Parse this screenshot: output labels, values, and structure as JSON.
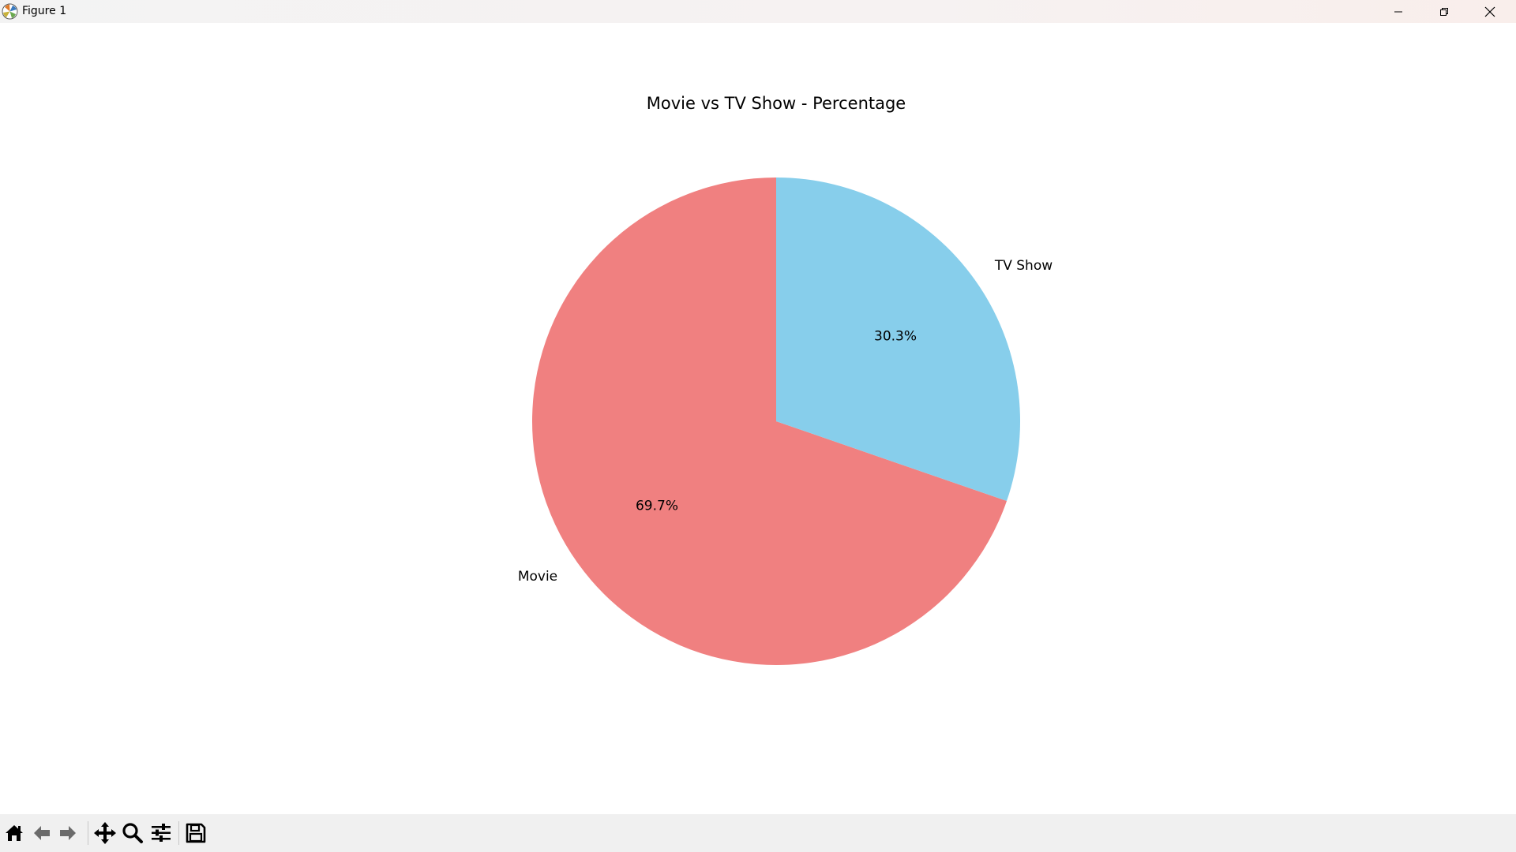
{
  "window": {
    "title": "Figure 1",
    "controls": {
      "minimize": "minimize-icon",
      "maximize": "restore-icon",
      "close": "close-icon"
    }
  },
  "toolbar": {
    "buttons": [
      {
        "name": "home",
        "icon": "home-icon"
      },
      {
        "name": "back",
        "icon": "arrow-left-icon"
      },
      {
        "name": "forward",
        "icon": "arrow-right-icon"
      },
      {
        "name": "pan",
        "icon": "move-icon"
      },
      {
        "name": "zoom",
        "icon": "magnifier-icon"
      },
      {
        "name": "configure-subplots",
        "icon": "sliders-icon"
      },
      {
        "name": "save",
        "icon": "floppy-disk-icon"
      }
    ]
  },
  "chart_data": {
    "type": "pie",
    "title": "Movie vs TV Show - Percentage",
    "start_angle_deg": 90,
    "direction": "counterclockwise",
    "slices": [
      {
        "label": "Movie",
        "value": 69.7,
        "pct_label": "69.7%",
        "color": "#f08080"
      },
      {
        "label": "TV Show",
        "value": 30.3,
        "pct_label": "30.3%",
        "color": "#87ceeb"
      }
    ]
  }
}
